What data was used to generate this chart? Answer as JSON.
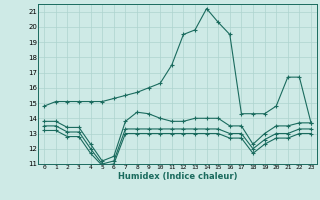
{
  "xlabel": "Humidex (Indice chaleur)",
  "xlim": [
    -0.5,
    23.5
  ],
  "ylim": [
    11,
    21.5
  ],
  "yticks": [
    11,
    12,
    13,
    14,
    15,
    16,
    17,
    18,
    19,
    20,
    21
  ],
  "xticks": [
    0,
    1,
    2,
    3,
    4,
    5,
    6,
    7,
    8,
    9,
    10,
    11,
    12,
    13,
    14,
    15,
    16,
    17,
    18,
    19,
    20,
    21,
    22,
    23
  ],
  "background_color": "#ceeae6",
  "grid_color": "#aed4cf",
  "line_color": "#1a6b5e",
  "lines": [
    {
      "x": [
        0,
        1,
        2,
        3,
        4,
        5,
        6,
        7,
        8,
        9,
        10,
        11,
        12,
        13,
        14,
        15,
        16,
        17,
        18,
        19,
        20,
        21,
        22,
        23
      ],
      "y": [
        14.8,
        15.1,
        15.1,
        15.1,
        15.1,
        15.1,
        15.3,
        15.5,
        15.7,
        16.0,
        16.3,
        17.5,
        19.5,
        19.8,
        21.2,
        20.3,
        19.5,
        14.3,
        14.3,
        14.3,
        14.8,
        16.7,
        16.7,
        13.7
      ]
    },
    {
      "x": [
        0,
        1,
        2,
        3,
        4,
        5,
        6,
        7,
        8,
        9,
        10,
        11,
        12,
        13,
        14,
        15,
        16,
        17,
        18,
        19,
        20,
        21,
        22,
        23
      ],
      "y": [
        13.8,
        13.8,
        13.4,
        13.4,
        12.3,
        11.2,
        11.5,
        13.8,
        14.4,
        14.3,
        14.0,
        13.8,
        13.8,
        14.0,
        14.0,
        14.0,
        13.5,
        13.5,
        12.3,
        13.0,
        13.5,
        13.5,
        13.7,
        13.7
      ]
    },
    {
      "x": [
        0,
        1,
        2,
        3,
        4,
        5,
        6,
        7,
        8,
        9,
        10,
        11,
        12,
        13,
        14,
        15,
        16,
        17,
        18,
        19,
        20,
        21,
        22,
        23
      ],
      "y": [
        13.5,
        13.5,
        13.1,
        13.1,
        12.0,
        11.0,
        11.2,
        13.3,
        13.3,
        13.3,
        13.3,
        13.3,
        13.3,
        13.3,
        13.3,
        13.3,
        13.0,
        13.0,
        12.0,
        12.6,
        13.0,
        13.0,
        13.3,
        13.3
      ]
    },
    {
      "x": [
        0,
        1,
        2,
        3,
        4,
        5,
        6,
        7,
        8,
        9,
        10,
        11,
        12,
        13,
        14,
        15,
        16,
        17,
        18,
        19,
        20,
        21,
        22,
        23
      ],
      "y": [
        13.2,
        13.2,
        12.8,
        12.8,
        11.7,
        10.9,
        11.0,
        13.0,
        13.0,
        13.0,
        13.0,
        13.0,
        13.0,
        13.0,
        13.0,
        13.0,
        12.7,
        12.7,
        11.7,
        12.3,
        12.7,
        12.7,
        13.0,
        13.0
      ]
    }
  ]
}
